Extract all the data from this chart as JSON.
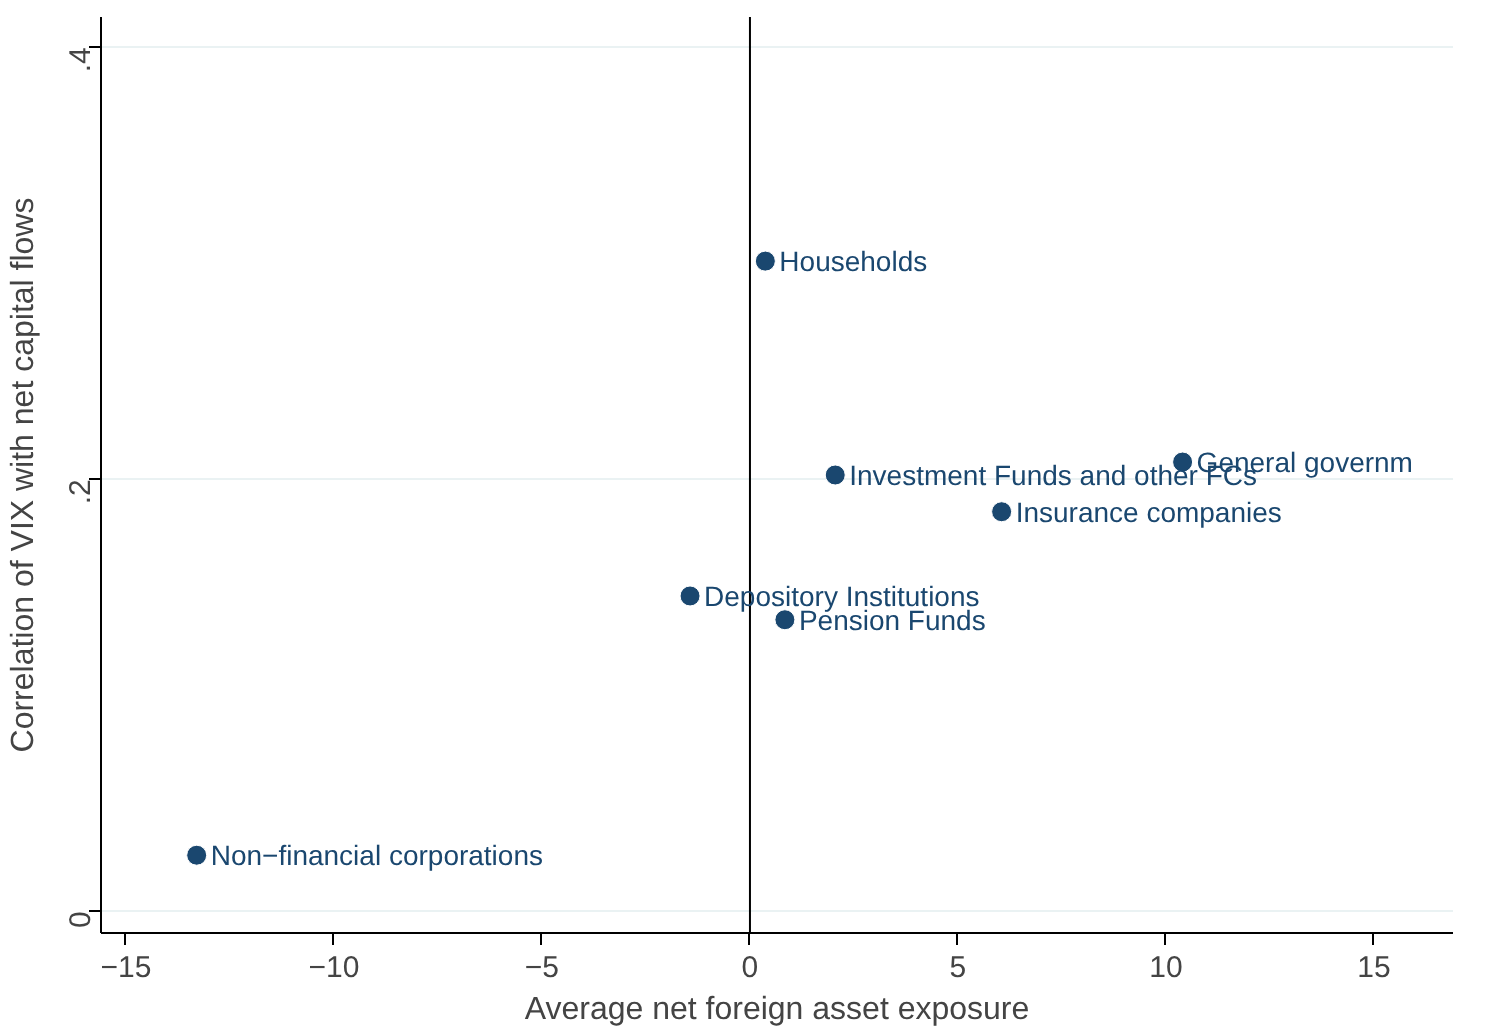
{
  "chart_data": {
    "type": "scatter",
    "xlabel": "Average net foreign asset exposure",
    "ylabel": "Correlation of VIX with net capital flows",
    "series": [
      {
        "color": "#1a476f",
        "x": [
          0.37,
          2.05,
          10.4,
          6.05,
          -1.44,
          0.84,
          -13.3
        ],
        "values": [
          0.301,
          0.202,
          0.208,
          0.185,
          0.146,
          0.135,
          0.026
        ],
        "value_labels": [
          "Households",
          "Investment Funds and other FCs",
          "General governm",
          "Insurance companies",
          "Depository Institutions",
          "Pension Funds",
          "Non−financial corporations"
        ]
      }
    ],
    "xlim": [
      -15.6,
      16.9
    ],
    "ylim": [
      -0.01,
      0.414
    ],
    "xticks": [
      {
        "value": -15,
        "label": "−15"
      },
      {
        "value": -10,
        "label": "−10"
      },
      {
        "value": -5,
        "label": "−5"
      },
      0,
      5,
      10,
      15
    ],
    "yticks": [
      0,
      {
        "value": 0.2,
        "label": ".2"
      },
      {
        "value": 0.4,
        "label": ".4"
      }
    ],
    "grid": "y",
    "marker": "circle",
    "ref_lines": [
      {
        "axis": "x",
        "value": 0,
        "color": "#000000"
      }
    ]
  }
}
